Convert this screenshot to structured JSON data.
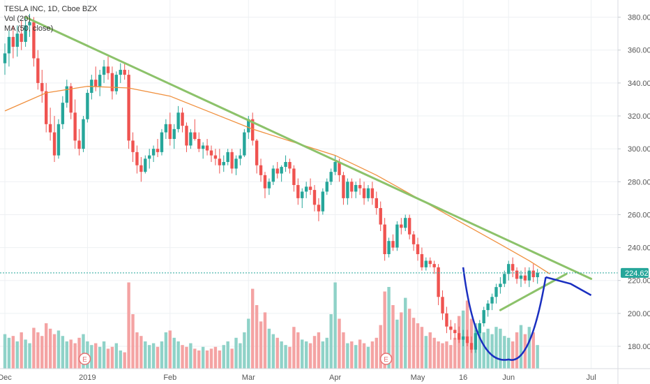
{
  "colors": {
    "up": "#26a69a",
    "down": "#ef5350",
    "vol_up": "#8fd2c8",
    "vol_down": "#f4a3a3",
    "ma": "#f0903e",
    "trend": "#8cc26a",
    "pattern": "#1a2fc0",
    "price_line": "#26a69a",
    "grid": "#eef0f3",
    "axis_text": "#555555"
  },
  "legend": {
    "symbol": "TESLA INC, 1D, Cboe BZX",
    "volume": "Vol (20)",
    "ma": "MA (50, close)"
  },
  "current_price_label": "224.62",
  "earnings_marker": "E",
  "chart_data": {
    "type": "candlestick",
    "title": "TESLA INC, 1D, Cboe BZX",
    "ylim": [
      165,
      390
    ],
    "y_ticks": [
      180,
      200,
      220,
      240,
      260,
      280,
      300,
      320,
      340,
      360,
      380
    ],
    "x_ticks": [
      {
        "label": "Dec",
        "t": 0
      },
      {
        "label": "2019",
        "t": 20
      },
      {
        "label": "Feb",
        "t": 40
      },
      {
        "label": "Mar",
        "t": 59
      },
      {
        "label": "Apr",
        "t": 80
      },
      {
        "label": "May",
        "t": 100
      },
      {
        "label": "16",
        "t": 111
      },
      {
        "label": "Jun",
        "t": 122
      },
      {
        "label": "Jul",
        "t": 142
      }
    ],
    "candles": [
      [
        352,
        364,
        345,
        358
      ],
      [
        358,
        372,
        350,
        368
      ],
      [
        368,
        375,
        355,
        362
      ],
      [
        362,
        375,
        356,
        370
      ],
      [
        370,
        378,
        360,
        365
      ],
      [
        365,
        380,
        362,
        375
      ],
      [
        375,
        382,
        368,
        377
      ],
      [
        377,
        380,
        350,
        355
      ],
      [
        355,
        360,
        336,
        340
      ],
      [
        340,
        348,
        328,
        335
      ],
      [
        335,
        340,
        310,
        315
      ],
      [
        315,
        325,
        305,
        310
      ],
      [
        310,
        320,
        292,
        296
      ],
      [
        296,
        318,
        294,
        315
      ],
      [
        315,
        332,
        312,
        328
      ],
      [
        328,
        342,
        325,
        338
      ],
      [
        338,
        340,
        318,
        322
      ],
      [
        322,
        330,
        300,
        305
      ],
      [
        305,
        312,
        296,
        300
      ],
      [
        300,
        320,
        298,
        318
      ],
      [
        318,
        336,
        316,
        334
      ],
      [
        334,
        345,
        330,
        342
      ],
      [
        342,
        350,
        335,
        338
      ],
      [
        338,
        348,
        332,
        345
      ],
      [
        345,
        354,
        340,
        350
      ],
      [
        350,
        356,
        342,
        346
      ],
      [
        346,
        350,
        330,
        335
      ],
      [
        335,
        347,
        333,
        345
      ],
      [
        345,
        352,
        340,
        348
      ],
      [
        348,
        352,
        342,
        345
      ],
      [
        345,
        348,
        300,
        305
      ],
      [
        305,
        310,
        292,
        298
      ],
      [
        298,
        302,
        285,
        290
      ],
      [
        290,
        295,
        280,
        286
      ],
      [
        286,
        296,
        285,
        294
      ],
      [
        294,
        300,
        288,
        296
      ],
      [
        296,
        302,
        292,
        300
      ],
      [
        300,
        306,
        295,
        298
      ],
      [
        298,
        312,
        296,
        310
      ],
      [
        310,
        318,
        306,
        315
      ],
      [
        315,
        322,
        302,
        306
      ],
      [
        306,
        315,
        300,
        312
      ],
      [
        312,
        326,
        310,
        322
      ],
      [
        322,
        325,
        310,
        314
      ],
      [
        314,
        316,
        298,
        302
      ],
      [
        302,
        312,
        300,
        310
      ],
      [
        310,
        318,
        305,
        306
      ],
      [
        306,
        310,
        298,
        300
      ],
      [
        300,
        304,
        294,
        302
      ],
      [
        302,
        306,
        296,
        299
      ],
      [
        299,
        302,
        292,
        296
      ],
      [
        296,
        300,
        290,
        294
      ],
      [
        294,
        300,
        285,
        290
      ],
      [
        290,
        296,
        286,
        292
      ],
      [
        292,
        300,
        290,
        298
      ],
      [
        298,
        300,
        285,
        288
      ],
      [
        288,
        296,
        284,
        294
      ],
      [
        294,
        300,
        290,
        296
      ],
      [
        296,
        312,
        295,
        310
      ],
      [
        310,
        320,
        306,
        318
      ],
      [
        318,
        322,
        302,
        305
      ],
      [
        305,
        306,
        285,
        290
      ],
      [
        290,
        294,
        280,
        284
      ],
      [
        284,
        286,
        270,
        276
      ],
      [
        276,
        282,
        272,
        280
      ],
      [
        280,
        290,
        278,
        288
      ],
      [
        288,
        292,
        282,
        285
      ],
      [
        285,
        290,
        280,
        289
      ],
      [
        289,
        296,
        286,
        292
      ],
      [
        292,
        294,
        285,
        288
      ],
      [
        288,
        290,
        274,
        278
      ],
      [
        278,
        282,
        266,
        270
      ],
      [
        270,
        276,
        264,
        274
      ],
      [
        274,
        280,
        270,
        277
      ],
      [
        277,
        282,
        272,
        275
      ],
      [
        275,
        278,
        262,
        266
      ],
      [
        266,
        270,
        256,
        262
      ],
      [
        262,
        276,
        260,
        274
      ],
      [
        274,
        282,
        272,
        280
      ],
      [
        280,
        288,
        278,
        286
      ],
      [
        286,
        296,
        284,
        292
      ],
      [
        292,
        294,
        280,
        284
      ],
      [
        284,
        286,
        266,
        270
      ],
      [
        270,
        282,
        266,
        280
      ],
      [
        280,
        282,
        270,
        274
      ],
      [
        274,
        280,
        270,
        278
      ],
      [
        278,
        282,
        272,
        276
      ],
      [
        276,
        280,
        266,
        270
      ],
      [
        270,
        278,
        268,
        276
      ],
      [
        276,
        280,
        266,
        270
      ],
      [
        270,
        274,
        260,
        264
      ],
      [
        264,
        268,
        250,
        254
      ],
      [
        254,
        258,
        232,
        236
      ],
      [
        236,
        246,
        234,
        244
      ],
      [
        244,
        248,
        238,
        240
      ],
      [
        240,
        256,
        238,
        254
      ],
      [
        254,
        258,
        248,
        252
      ],
      [
        252,
        260,
        250,
        258
      ],
      [
        258,
        260,
        245,
        248
      ],
      [
        248,
        250,
        238,
        242
      ],
      [
        242,
        246,
        232,
        236
      ],
      [
        236,
        240,
        226,
        228
      ],
      [
        228,
        234,
        226,
        232
      ],
      [
        232,
        234,
        228,
        230
      ],
      [
        230,
        232,
        224,
        228
      ],
      [
        228,
        230,
        205,
        210
      ],
      [
        210,
        214,
        196,
        200
      ],
      [
        200,
        204,
        188,
        192
      ],
      [
        192,
        196,
        184,
        190
      ],
      [
        190,
        194,
        184,
        188
      ],
      [
        188,
        192,
        182,
        184
      ],
      [
        184,
        190,
        180,
        186
      ],
      [
        186,
        190,
        180,
        182
      ],
      [
        182,
        186,
        176,
        178
      ],
      [
        178,
        190,
        176,
        188
      ],
      [
        188,
        196,
        185,
        194
      ],
      [
        194,
        204,
        192,
        202
      ],
      [
        202,
        208,
        198,
        206
      ],
      [
        206,
        212,
        202,
        210
      ],
      [
        210,
        218,
        206,
        216
      ],
      [
        216,
        222,
        212,
        218
      ],
      [
        218,
        226,
        216,
        224
      ],
      [
        224,
        232,
        220,
        230
      ],
      [
        230,
        234,
        222,
        226
      ],
      [
        226,
        228,
        218,
        221
      ],
      [
        221,
        226,
        216,
        223
      ],
      [
        223,
        228,
        218,
        220
      ],
      [
        220,
        228,
        216,
        226
      ],
      [
        226,
        230,
        219,
        222
      ],
      [
        222,
        227,
        218,
        224.62
      ]
    ],
    "volume": [
      0.38,
      0.34,
      0.36,
      0.3,
      0.4,
      0.32,
      0.28,
      0.45,
      0.4,
      0.36,
      0.5,
      0.44,
      0.38,
      0.42,
      0.36,
      0.3,
      0.32,
      0.28,
      0.34,
      0.38,
      0.3,
      0.26,
      0.28,
      0.24,
      0.3,
      0.22,
      0.24,
      0.28,
      0.2,
      0.18,
      0.95,
      0.6,
      0.4,
      0.36,
      0.3,
      0.26,
      0.28,
      0.24,
      0.3,
      0.4,
      0.42,
      0.34,
      0.3,
      0.26,
      0.24,
      0.28,
      0.22,
      0.2,
      0.24,
      0.2,
      0.22,
      0.24,
      0.2,
      0.26,
      0.3,
      0.22,
      0.34,
      0.28,
      0.4,
      0.55,
      0.88,
      0.7,
      0.52,
      0.62,
      0.44,
      0.38,
      0.34,
      0.3,
      0.26,
      0.24,
      0.46,
      0.4,
      0.32,
      0.3,
      0.28,
      0.36,
      0.4,
      0.3,
      0.34,
      0.6,
      0.95,
      0.55,
      0.4,
      0.28,
      0.3,
      0.26,
      0.32,
      0.28,
      0.24,
      0.3,
      0.34,
      0.48,
      0.85,
      0.9,
      0.7,
      0.54,
      0.62,
      0.78,
      0.66,
      0.56,
      0.5,
      0.46,
      0.36,
      0.4,
      0.34,
      0.3,
      0.28,
      0.3,
      0.26,
      0.34,
      0.58,
      0.64,
      0.75,
      0.55,
      0.5,
      0.48,
      0.4,
      0.44,
      0.38,
      0.46,
      0.44,
      0.36,
      0.34,
      0.3,
      0.4,
      0.48,
      0.38,
      0.46,
      0.4,
      0.26
    ],
    "ma_50": [
      [
        0,
        323
      ],
      [
        10,
        334
      ],
      [
        20,
        338
      ],
      [
        30,
        337
      ],
      [
        40,
        332
      ],
      [
        50,
        322
      ],
      [
        60,
        312
      ],
      [
        70,
        304
      ],
      [
        80,
        296
      ],
      [
        90,
        284
      ],
      [
        100,
        270
      ],
      [
        110,
        256
      ],
      [
        120,
        242
      ],
      [
        127,
        232
      ],
      [
        132,
        224
      ]
    ],
    "trendlines": [
      {
        "name": "upper-resistance",
        "from": [
          5,
          380
        ],
        "to": [
          142,
          221
        ]
      },
      {
        "name": "apex-support",
        "from": [
          120,
          202
        ],
        "to": [
          136,
          224
        ]
      }
    ],
    "pattern": {
      "cup": [
        [
          111,
          228
        ],
        [
          122,
          172
        ],
        [
          131,
          222
        ]
      ],
      "handle": [
        [
          131,
          222
        ],
        [
          137,
          218
        ],
        [
          142,
          211
        ]
      ]
    },
    "earnings_markers_t": [
      19,
      92
    ]
  }
}
